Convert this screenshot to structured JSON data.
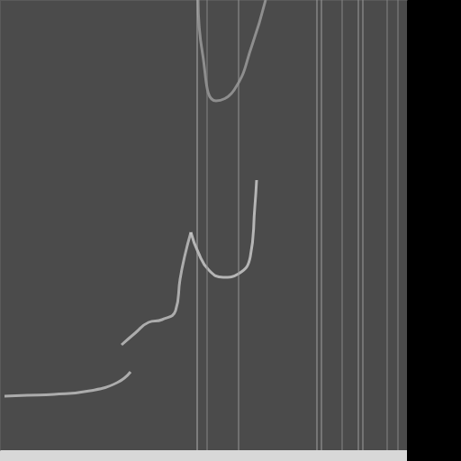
{
  "chart_data": {
    "type": "line",
    "tick_labels": false,
    "grid": false,
    "xlim": [
      0,
      452
    ],
    "ylim": [
      0,
      500
    ],
    "series": [
      {
        "color": "#bdbdbd",
        "x": [
          5,
          30,
          60,
          100,
          130,
          145
        ],
        "values": [
          440,
          439,
          438,
          434,
          425,
          413
        ]
      },
      {
        "color": "#bdbdbd",
        "x": [
          135,
          150,
          165,
          180,
          195,
          200,
          205,
          212
        ],
        "values": [
          383,
          370,
          358,
          355,
          345,
          310,
          285,
          258
        ]
      },
      {
        "color": "#c8c8c8",
        "x": [
          212,
          220,
          232,
          248,
          265,
          278,
          283,
          285
        ],
        "values": [
          258,
          280,
          300,
          308,
          304,
          285,
          230,
          200
        ]
      },
      {
        "color": "#9a9a9a",
        "x": [
          220,
          225,
          240,
          260,
          280,
          295
        ],
        "values": [
          0,
          60,
          112,
          100,
          50,
          0
        ]
      },
      {
        "color": "#b5b5b5",
        "x": [
          219,
          219
        ],
        "values": [
          0,
          500
        ]
      },
      {
        "color": "#8a8a8a",
        "x": [
          230,
          230
        ],
        "values": [
          0,
          500
        ]
      },
      {
        "color": "#9a9a9a",
        "x": [
          265,
          265
        ],
        "values": [
          0,
          500
        ]
      },
      {
        "color": "#a5a5a5",
        "x": [
          352,
          352
        ],
        "values": [
          0,
          500
        ]
      },
      {
        "color": "#a5a5a5",
        "x": [
          357,
          357
        ],
        "values": [
          0,
          500
        ]
      },
      {
        "color": "#8a8a8a",
        "x": [
          380,
          380
        ],
        "values": [
          0,
          500
        ]
      },
      {
        "color": "#a0a0a0",
        "x": [
          398,
          398
        ],
        "values": [
          0,
          500
        ]
      },
      {
        "color": "#a0a0a0",
        "x": [
          403,
          403
        ],
        "values": [
          0,
          500
        ]
      },
      {
        "color": "#8a8a8a",
        "x": [
          430,
          430
        ],
        "values": [
          0,
          500
        ]
      },
      {
        "color": "#8a8a8a",
        "x": [
          442,
          442
        ],
        "values": [
          0,
          500
        ]
      }
    ]
  }
}
